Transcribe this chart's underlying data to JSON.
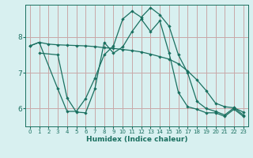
{
  "xlabel": "Humidex (Indice chaleur)",
  "ylabel": "",
  "bg_color": "#d8f0f0",
  "grid_color": "#c8a8a8",
  "line_color": "#1a7060",
  "x_ticks": [
    0,
    1,
    2,
    3,
    4,
    5,
    6,
    7,
    8,
    9,
    10,
    11,
    12,
    13,
    14,
    15,
    16,
    17,
    18,
    19,
    20,
    21,
    22,
    23
  ],
  "y_ticks": [
    6,
    7,
    8
  ],
  "ylim": [
    5.5,
    8.9
  ],
  "xlim": [
    -0.5,
    23.5
  ],
  "line1_x": [
    0,
    1,
    2,
    3,
    4,
    5,
    6,
    7,
    8,
    9,
    10,
    11,
    12,
    13,
    14,
    15,
    16,
    17,
    18,
    19,
    20,
    21,
    22,
    23
  ],
  "line1_y": [
    7.75,
    7.85,
    7.8,
    7.78,
    7.77,
    7.76,
    7.75,
    7.73,
    7.7,
    7.68,
    7.65,
    7.62,
    7.58,
    7.52,
    7.45,
    7.38,
    7.25,
    7.05,
    6.8,
    6.5,
    6.15,
    6.05,
    6.02,
    5.9
  ],
  "line2_x": [
    0,
    1,
    3,
    4,
    5,
    6,
    7,
    8,
    9,
    10,
    11,
    12,
    13,
    14,
    15,
    16,
    17,
    18,
    19,
    20,
    21,
    22,
    23
  ],
  "line2_y": [
    7.75,
    7.85,
    6.55,
    5.92,
    5.92,
    6.28,
    6.85,
    7.5,
    7.75,
    8.5,
    8.72,
    8.55,
    8.82,
    8.62,
    8.3,
    7.5,
    7.0,
    6.2,
    6.0,
    5.92,
    5.82,
    6.02,
    5.82
  ],
  "line3_x": [
    1,
    3,
    4,
    5,
    6,
    7,
    8,
    9,
    10,
    11,
    12,
    13,
    14,
    15,
    16,
    17,
    18,
    19,
    20,
    21,
    22,
    23
  ],
  "line3_y": [
    7.55,
    7.5,
    6.3,
    5.9,
    5.88,
    6.55,
    7.85,
    7.55,
    7.72,
    8.15,
    8.5,
    8.15,
    8.45,
    7.55,
    6.45,
    6.05,
    5.98,
    5.88,
    5.88,
    5.78,
    5.98,
    5.78
  ]
}
